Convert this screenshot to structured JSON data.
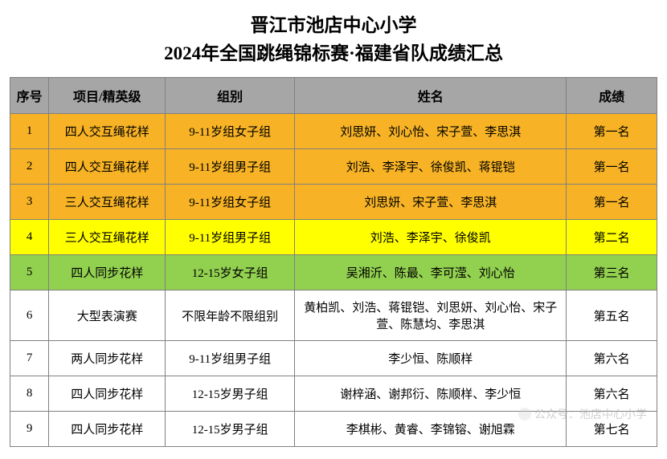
{
  "title": {
    "line1": "晋江市池店中心小学",
    "line2": "2024年全国跳绳锦标赛·福建省队成绩汇总"
  },
  "table": {
    "header_bg": "#a6a6a6",
    "border_color": "#808080",
    "columns": [
      {
        "key": "seq",
        "label": "序号"
      },
      {
        "key": "event",
        "label": "项目/精英级"
      },
      {
        "key": "group",
        "label": "组别"
      },
      {
        "key": "name",
        "label": "姓名"
      },
      {
        "key": "result",
        "label": "成绩"
      }
    ],
    "row_colors": {
      "gold": "#f7b325",
      "yellow": "#ffff00",
      "green": "#92d050",
      "white": "#ffffff"
    },
    "rows": [
      {
        "seq": "1",
        "event": "四人交互绳花样",
        "group": "9-11岁组女子组",
        "name": "刘思妍、刘心怡、宋子萱、李思淇",
        "result": "第一名",
        "color": "gold"
      },
      {
        "seq": "2",
        "event": "四人交互绳花样",
        "group": "9-11岁组男子组",
        "name": "刘浩、李泽宇、徐俊凯、蒋锟铠",
        "result": "第一名",
        "color": "gold"
      },
      {
        "seq": "3",
        "event": "三人交互绳花样",
        "group": "9-11岁组女子组",
        "name": "刘思妍、宋子萱、李思淇",
        "result": "第一名",
        "color": "gold"
      },
      {
        "seq": "4",
        "event": "三人交互绳花样",
        "group": "9-11岁组男子组",
        "name": "刘浩、李泽宇、徐俊凯",
        "result": "第二名",
        "color": "yellow"
      },
      {
        "seq": "5",
        "event": "四人同步花样",
        "group": "12-15岁女子组",
        "name": "吴湘沂、陈最、李可滢、刘心怡",
        "result": "第三名",
        "color": "green"
      },
      {
        "seq": "6",
        "event": "大型表演赛",
        "group": "不限年龄不限组别",
        "name": "黄柏凯、刘浩、蒋锟铠、刘思妍、刘心怡、宋子萱、陈慧均、李思淇",
        "result": "第五名",
        "color": "white"
      },
      {
        "seq": "7",
        "event": "两人同步花样",
        "group": "9-11岁组男子组",
        "name": "李少恒、陈顺样",
        "result": "第六名",
        "color": "white"
      },
      {
        "seq": "8",
        "event": "四人同步花样",
        "group": "12-15岁男子组",
        "name": "谢梓涵、谢邦衍、陈顺样、李少恒",
        "result": "第六名",
        "color": "white"
      },
      {
        "seq": "9",
        "event": "四人同步花样",
        "group": "12-15岁男子组",
        "name": "李棋彬、黄睿、李锦镕、谢旭霖",
        "result": "第七名",
        "color": "white"
      }
    ]
  },
  "watermark": {
    "text": "公众号：池店中心小学"
  }
}
